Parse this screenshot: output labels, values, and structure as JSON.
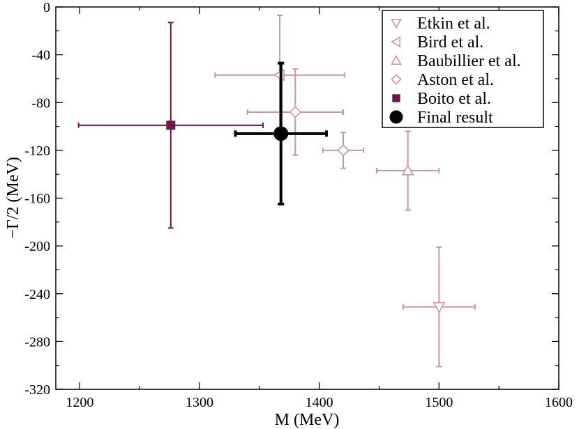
{
  "chart_data": {
    "type": "scatter",
    "title": "",
    "xlabel": "M (MeV)",
    "ylabel": "−Γ/2 (MeV)",
    "xlim": [
      1180,
      1600
    ],
    "ylim": [
      -320,
      0
    ],
    "xticks": [
      1200,
      1300,
      1400,
      1500,
      1600
    ],
    "yticks": [
      -320,
      -280,
      -240,
      -200,
      -160,
      -120,
      -80,
      -40,
      0
    ],
    "grid": false,
    "legend_position": "top-right",
    "series": [
      {
        "name": "Etkin et al.",
        "marker": "triangle-down",
        "color": "#c49a9a",
        "points": [
          {
            "x": 1500,
            "y": -251,
            "xerr": 30,
            "yerr": 50
          }
        ]
      },
      {
        "name": "Bird et al.",
        "marker": "triangle-left",
        "color": "#c49a9a",
        "points": [
          {
            "x": 1367,
            "y": -57,
            "xerr": 54,
            "yerr": 50
          }
        ]
      },
      {
        "name": "Baubillier et al.",
        "marker": "triangle-up",
        "color": "#c49a9a",
        "points": [
          {
            "x": 1474,
            "y": -137,
            "xerr": 26,
            "yerr": 33
          }
        ]
      },
      {
        "name": "Aston et al.",
        "marker": "diamond",
        "color": "#c49a9a",
        "points": [
          {
            "x": 1380,
            "y": -88,
            "xerr": 40,
            "yerr": 36
          },
          {
            "x": 1420,
            "y": -120,
            "xerr": 17,
            "yerr": 15
          }
        ]
      },
      {
        "name": "Boito et al.",
        "marker": "square",
        "color": "#6a1a4a",
        "points": [
          {
            "x": 1276,
            "y": -99,
            "xerr": 77,
            "yerr": 86
          }
        ]
      },
      {
        "name": "Final result",
        "marker": "circle",
        "color": "#000000",
        "points": [
          {
            "x": 1368,
            "y": -106,
            "xerr": 38,
            "yerr": 59
          }
        ]
      }
    ]
  }
}
